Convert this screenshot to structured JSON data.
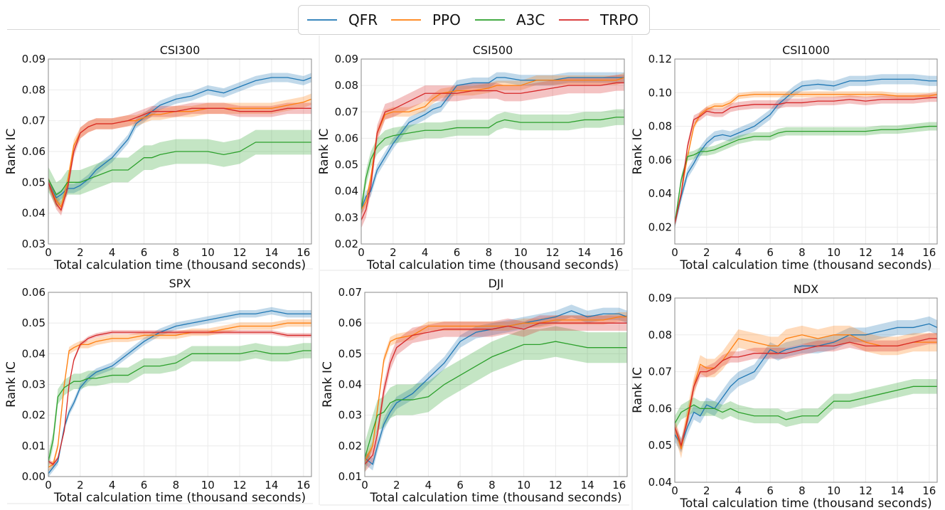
{
  "legend": {
    "position": "top-center",
    "entries": [
      {
        "name": "QFR",
        "color": "#1f77b4"
      },
      {
        "name": "PPO",
        "color": "#ff7f0e"
      },
      {
        "name": "A3C",
        "color": "#2ca02c"
      },
      {
        "name": "TRPO",
        "color": "#d62728"
      }
    ]
  },
  "chart_data": [
    {
      "type": "line",
      "title": "CSI300",
      "xlabel": "Total calculation time (thousand seconds)",
      "ylabel": "Rank IC",
      "xlim": [
        0,
        16.5
      ],
      "ylim": [
        0.03,
        0.09
      ],
      "xticks": [
        0,
        2,
        4,
        6,
        8,
        10,
        12,
        14,
        16
      ],
      "yticks": [
        "0.03",
        "0.04",
        "0.05",
        "0.06",
        "0.07",
        "0.08",
        "0.09"
      ],
      "grid": true,
      "x": [
        0,
        0.5,
        0.8,
        1.2,
        1.6,
        2,
        2.5,
        3,
        4,
        5,
        5.5,
        6,
        6.5,
        7,
        8,
        9,
        10,
        11,
        12,
        13,
        14,
        15,
        16,
        16.5
      ],
      "series": [
        {
          "name": "QFR",
          "values": [
            0.05,
            0.045,
            0.046,
            0.048,
            0.048,
            0.049,
            0.051,
            0.054,
            0.058,
            0.064,
            0.069,
            0.071,
            0.073,
            0.075,
            0.077,
            0.078,
            0.08,
            0.079,
            0.081,
            0.083,
            0.084,
            0.084,
            0.083,
            0.084
          ],
          "band": 0.0015
        },
        {
          "name": "PPO",
          "values": [
            0.05,
            0.044,
            0.042,
            0.05,
            0.062,
            0.066,
            0.068,
            0.069,
            0.069,
            0.07,
            0.07,
            0.071,
            0.072,
            0.072,
            0.073,
            0.073,
            0.074,
            0.074,
            0.074,
            0.074,
            0.074,
            0.075,
            0.076,
            0.077
          ],
          "band": 0.0018
        },
        {
          "name": "A3C",
          "values": [
            0.051,
            0.046,
            0.047,
            0.05,
            0.05,
            0.05,
            0.051,
            0.052,
            0.054,
            0.054,
            0.056,
            0.058,
            0.058,
            0.059,
            0.06,
            0.06,
            0.06,
            0.059,
            0.06,
            0.063,
            0.063,
            0.063,
            0.063,
            0.063
          ],
          "band": 0.004
        },
        {
          "name": "TRPO",
          "values": [
            0.05,
            0.043,
            0.041,
            0.048,
            0.06,
            0.066,
            0.068,
            0.069,
            0.069,
            0.07,
            0.071,
            0.072,
            0.073,
            0.073,
            0.073,
            0.074,
            0.074,
            0.074,
            0.073,
            0.073,
            0.073,
            0.074,
            0.074,
            0.074
          ],
          "band": 0.0018
        }
      ]
    },
    {
      "type": "line",
      "title": "CSI500",
      "xlabel": "Total calculation time (thousand seconds)",
      "ylabel": "Rank IC",
      "xlim": [
        0,
        16.5
      ],
      "ylim": [
        0.02,
        0.09
      ],
      "xticks": [
        0,
        2,
        4,
        6,
        8,
        10,
        12,
        14,
        16
      ],
      "yticks": [
        "0.02",
        "0.03",
        "0.04",
        "0.05",
        "0.06",
        "0.07",
        "0.08",
        "0.09"
      ],
      "grid": true,
      "x": [
        0,
        0.3,
        0.6,
        1,
        1.5,
        2,
        3,
        4,
        4.5,
        5,
        6,
        7,
        8,
        8.5,
        9,
        10,
        11,
        12,
        13,
        14,
        15,
        16,
        16.5
      ],
      "series": [
        {
          "name": "QFR",
          "values": [
            0.033,
            0.038,
            0.04,
            0.048,
            0.053,
            0.058,
            0.066,
            0.069,
            0.071,
            0.072,
            0.08,
            0.081,
            0.081,
            0.083,
            0.083,
            0.082,
            0.082,
            0.082,
            0.083,
            0.083,
            0.083,
            0.083,
            0.083
          ],
          "band": 0.002
        },
        {
          "name": "PPO",
          "values": [
            0.033,
            0.036,
            0.045,
            0.062,
            0.069,
            0.07,
            0.07,
            0.072,
            0.075,
            0.077,
            0.078,
            0.078,
            0.079,
            0.08,
            0.08,
            0.08,
            0.082,
            0.082,
            0.082,
            0.082,
            0.082,
            0.082,
            0.083
          ],
          "band": 0.0018
        },
        {
          "name": "A3C",
          "values": [
            0.033,
            0.045,
            0.052,
            0.057,
            0.06,
            0.061,
            0.062,
            0.063,
            0.063,
            0.063,
            0.064,
            0.064,
            0.064,
            0.066,
            0.067,
            0.066,
            0.066,
            0.066,
            0.066,
            0.067,
            0.067,
            0.068,
            0.068
          ],
          "band": 0.003
        },
        {
          "name": "TRPO",
          "values": [
            0.029,
            0.033,
            0.042,
            0.062,
            0.07,
            0.071,
            0.074,
            0.077,
            0.077,
            0.077,
            0.077,
            0.078,
            0.078,
            0.078,
            0.077,
            0.077,
            0.078,
            0.079,
            0.08,
            0.08,
            0.08,
            0.081,
            0.081
          ],
          "band": 0.003
        }
      ]
    },
    {
      "type": "line",
      "title": "CSI1000",
      "xlabel": "Total calculation time (thousand seconds)",
      "ylabel": "Rank IC",
      "xlim": [
        0,
        16.5
      ],
      "ylim": [
        0.01,
        0.12
      ],
      "xticks": [
        0,
        2,
        4,
        6,
        8,
        10,
        12,
        14,
        16
      ],
      "yticks": [
        "0.02",
        "0.04",
        "0.06",
        "0.08",
        "0.10",
        "0.12"
      ],
      "grid": true,
      "x": [
        0,
        0.4,
        0.8,
        1.2,
        1.6,
        2,
        2.5,
        3,
        3.5,
        4,
        5,
        6,
        6.5,
        7,
        7.5,
        8,
        9,
        10,
        11,
        12,
        13,
        14,
        15,
        16,
        16.5
      ],
      "series": [
        {
          "name": "QFR",
          "values": [
            0.022,
            0.038,
            0.052,
            0.058,
            0.065,
            0.07,
            0.074,
            0.075,
            0.074,
            0.076,
            0.08,
            0.087,
            0.093,
            0.097,
            0.101,
            0.104,
            0.105,
            0.104,
            0.107,
            0.107,
            0.108,
            0.108,
            0.108,
            0.107,
            0.107
          ],
          "band": 0.003
        },
        {
          "name": "PPO",
          "values": [
            0.022,
            0.04,
            0.062,
            0.08,
            0.087,
            0.09,
            0.092,
            0.092,
            0.094,
            0.098,
            0.099,
            0.099,
            0.099,
            0.099,
            0.099,
            0.099,
            0.099,
            0.099,
            0.099,
            0.099,
            0.099,
            0.098,
            0.098,
            0.098,
            0.099
          ],
          "band": 0.0018
        },
        {
          "name": "A3C",
          "values": [
            0.022,
            0.048,
            0.062,
            0.063,
            0.065,
            0.065,
            0.066,
            0.068,
            0.07,
            0.072,
            0.074,
            0.074,
            0.076,
            0.077,
            0.077,
            0.077,
            0.077,
            0.077,
            0.077,
            0.077,
            0.078,
            0.078,
            0.079,
            0.08,
            0.08
          ],
          "band": 0.0025
        },
        {
          "name": "TRPO",
          "values": [
            0.022,
            0.04,
            0.068,
            0.084,
            0.086,
            0.089,
            0.088,
            0.088,
            0.091,
            0.092,
            0.093,
            0.093,
            0.093,
            0.094,
            0.094,
            0.094,
            0.095,
            0.095,
            0.096,
            0.095,
            0.096,
            0.096,
            0.096,
            0.097,
            0.097
          ],
          "band": 0.0025
        }
      ]
    },
    {
      "type": "line",
      "title": "SPX",
      "xlabel": "Total calculation time (thousand seconds)",
      "ylabel": "Rank IC",
      "xlim": [
        0,
        16.5
      ],
      "ylim": [
        0.0,
        0.06
      ],
      "xticks": [
        0,
        2,
        4,
        6,
        8,
        10,
        12,
        14,
        16
      ],
      "yticks": [
        "0.00",
        "0.01",
        "0.02",
        "0.03",
        "0.04",
        "0.05",
        "0.06"
      ],
      "grid": true,
      "x": [
        0,
        0.3,
        0.6,
        1,
        1.3,
        1.6,
        2,
        2.5,
        3,
        4,
        5,
        6,
        7,
        8,
        9,
        10,
        11,
        12,
        13,
        14,
        15,
        16,
        16.5
      ],
      "series": [
        {
          "name": "QFR",
          "values": [
            0.001,
            0.003,
            0.005,
            0.016,
            0.021,
            0.024,
            0.029,
            0.032,
            0.034,
            0.036,
            0.04,
            0.044,
            0.047,
            0.049,
            0.05,
            0.051,
            0.052,
            0.053,
            0.053,
            0.054,
            0.053,
            0.053,
            0.053
          ],
          "band": 0.0012
        },
        {
          "name": "PPO",
          "values": [
            0.003,
            0.004,
            0.01,
            0.03,
            0.041,
            0.042,
            0.043,
            0.043,
            0.044,
            0.045,
            0.045,
            0.046,
            0.046,
            0.046,
            0.047,
            0.047,
            0.048,
            0.049,
            0.049,
            0.049,
            0.05,
            0.05,
            0.05
          ],
          "band": 0.0012
        },
        {
          "name": "A3C",
          "values": [
            0.005,
            0.012,
            0.026,
            0.029,
            0.03,
            0.031,
            0.031,
            0.032,
            0.032,
            0.033,
            0.033,
            0.036,
            0.036,
            0.037,
            0.04,
            0.04,
            0.04,
            0.04,
            0.041,
            0.04,
            0.04,
            0.041,
            0.041
          ],
          "band": 0.0025
        },
        {
          "name": "TRPO",
          "values": [
            0.005,
            0.004,
            0.006,
            0.015,
            0.03,
            0.038,
            0.043,
            0.045,
            0.046,
            0.047,
            0.047,
            0.047,
            0.047,
            0.047,
            0.047,
            0.047,
            0.047,
            0.047,
            0.047,
            0.047,
            0.046,
            0.046,
            0.046
          ],
          "band": 0.0007
        }
      ]
    },
    {
      "type": "line",
      "title": "DJI",
      "xlabel": "Total calculation time (thousand seconds)",
      "ylabel": "Rank IC",
      "xlim": [
        0,
        16.5
      ],
      "ylim": [
        0.01,
        0.07
      ],
      "xticks": [
        0,
        2,
        4,
        6,
        8,
        10,
        12,
        14,
        16
      ],
      "yticks": [
        "0.01",
        "0.02",
        "0.03",
        "0.04",
        "0.05",
        "0.06",
        "0.07"
      ],
      "grid": true,
      "x": [
        0,
        0.5,
        0.8,
        1.2,
        1.6,
        2,
        3,
        4,
        5,
        6,
        7,
        8,
        9,
        10,
        11,
        12,
        13,
        14,
        15,
        16,
        16.5
      ],
      "series": [
        {
          "name": "QFR",
          "values": [
            0.016,
            0.014,
            0.02,
            0.027,
            0.031,
            0.034,
            0.037,
            0.042,
            0.047,
            0.054,
            0.057,
            0.058,
            0.059,
            0.06,
            0.061,
            0.062,
            0.064,
            0.062,
            0.063,
            0.063,
            0.062
          ],
          "band": 0.002
        },
        {
          "name": "PPO",
          "values": [
            0.015,
            0.02,
            0.032,
            0.048,
            0.054,
            0.055,
            0.056,
            0.059,
            0.059,
            0.059,
            0.059,
            0.059,
            0.059,
            0.06,
            0.06,
            0.061,
            0.061,
            0.061,
            0.061,
            0.062,
            0.062
          ],
          "band": 0.0015
        },
        {
          "name": "A3C",
          "values": [
            0.016,
            0.025,
            0.03,
            0.031,
            0.034,
            0.035,
            0.035,
            0.036,
            0.04,
            0.043,
            0.046,
            0.049,
            0.051,
            0.053,
            0.053,
            0.054,
            0.053,
            0.052,
            0.052,
            0.052,
            0.052
          ],
          "band": 0.005
        },
        {
          "name": "TRPO",
          "values": [
            0.014,
            0.017,
            0.024,
            0.038,
            0.047,
            0.052,
            0.056,
            0.057,
            0.058,
            0.058,
            0.058,
            0.058,
            0.059,
            0.058,
            0.06,
            0.06,
            0.06,
            0.06,
            0.06,
            0.06,
            0.06
          ],
          "band": 0.0025
        }
      ]
    },
    {
      "type": "line",
      "title": "NDX",
      "xlabel": "Total calculation time (thousand seconds)",
      "ylabel": "Rank IC",
      "xlim": [
        0,
        16.5
      ],
      "ylim": [
        0.04,
        0.09
      ],
      "xticks": [
        0,
        2,
        4,
        6,
        8,
        10,
        12,
        14,
        16
      ],
      "yticks": [
        "0.04",
        "0.05",
        "0.06",
        "0.07",
        "0.08",
        "0.09"
      ],
      "grid": true,
      "x": [
        0,
        0.4,
        0.8,
        1.2,
        1.6,
        2,
        2.5,
        3,
        3.5,
        4,
        5,
        6,
        6.5,
        7,
        8,
        9,
        10,
        11,
        12,
        13,
        14,
        15,
        16,
        16.5
      ],
      "series": [
        {
          "name": "QFR",
          "values": [
            0.053,
            0.05,
            0.055,
            0.059,
            0.058,
            0.061,
            0.06,
            0.063,
            0.066,
            0.068,
            0.07,
            0.076,
            0.075,
            0.076,
            0.077,
            0.077,
            0.078,
            0.08,
            0.08,
            0.081,
            0.082,
            0.082,
            0.083,
            0.082
          ],
          "band": 0.002
        },
        {
          "name": "PPO",
          "values": [
            0.055,
            0.049,
            0.058,
            0.066,
            0.072,
            0.071,
            0.071,
            0.073,
            0.076,
            0.079,
            0.078,
            0.077,
            0.077,
            0.079,
            0.08,
            0.079,
            0.08,
            0.08,
            0.078,
            0.077,
            0.077,
            0.078,
            0.078,
            0.078
          ],
          "band": 0.0025
        },
        {
          "name": "A3C",
          "values": [
            0.056,
            0.059,
            0.06,
            0.061,
            0.06,
            0.06,
            0.06,
            0.059,
            0.06,
            0.059,
            0.058,
            0.058,
            0.058,
            0.057,
            0.058,
            0.058,
            0.062,
            0.062,
            0.063,
            0.064,
            0.065,
            0.066,
            0.066,
            0.066
          ],
          "band": 0.002
        },
        {
          "name": "TRPO",
          "values": [
            0.055,
            0.05,
            0.057,
            0.066,
            0.07,
            0.07,
            0.071,
            0.073,
            0.074,
            0.074,
            0.075,
            0.075,
            0.075,
            0.075,
            0.076,
            0.077,
            0.077,
            0.078,
            0.077,
            0.077,
            0.077,
            0.078,
            0.079,
            0.079
          ],
          "band": 0.0015
        }
      ]
    }
  ]
}
